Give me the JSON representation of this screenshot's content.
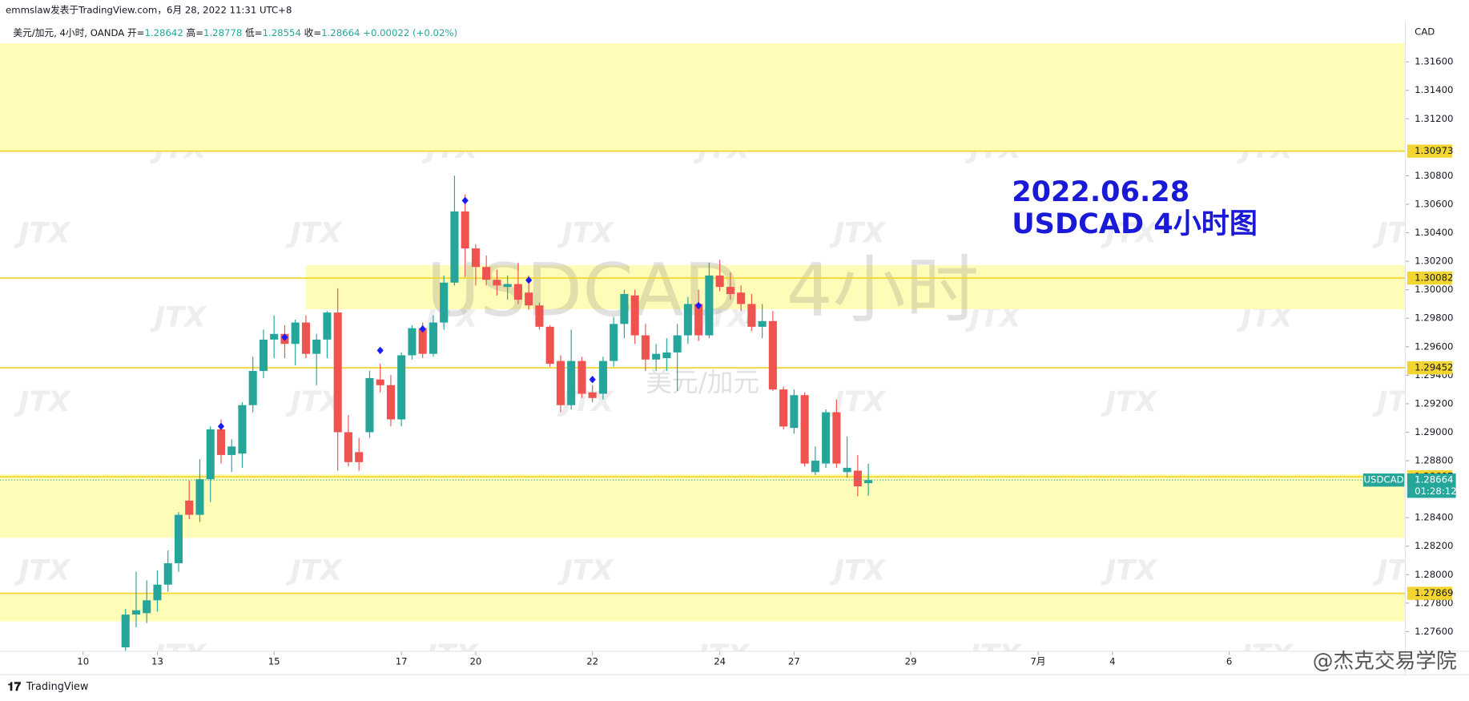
{
  "chart_data": {
    "type": "candlestick",
    "byline": "emmslaw发表于TradingView.com，6月 28, 2022 11:31 UTC+8",
    "symbol": "美元/加元, 4小时, OANDA",
    "ohlc_labels": [
      "开=",
      "高=",
      "低=",
      "收="
    ],
    "change": "+0.00022 (+0.02%)",
    "currency": "CAD",
    "watermark": "USDCAD, 4小时",
    "watermark_sub": "美元/加元",
    "tile_mark": "JTX",
    "annotation": [
      "2022.06.28",
      "USDCAD 4小时图"
    ],
    "brand": "TradingView",
    "credit": "@杰克交易学院",
    "last_name": "USDCAD",
    "countdown": "01:28:12",
    "up_color": "#26a69a",
    "down_color": "#ef5350",
    "level_color": "#f2d530",
    "zone_color": "#fffcb8",
    "ohlc": [
      [
        1.2749,
        1.2776,
        1.2745,
        1.2772
      ],
      [
        1.2772,
        1.2802,
        1.2763,
        1.2775
      ],
      [
        1.2773,
        1.2796,
        1.2766,
        1.2782
      ],
      [
        1.2782,
        1.2803,
        1.2774,
        1.2793
      ],
      [
        1.2793,
        1.2817,
        1.2788,
        1.2808
      ],
      [
        1.2808,
        1.2844,
        1.2802,
        1.2842
      ],
      [
        1.2852,
        1.2866,
        1.2839,
        1.2842
      ],
      [
        1.2842,
        1.2881,
        1.2837,
        1.2867
      ],
      [
        1.2867,
        1.2904,
        1.2851,
        1.2902
      ],
      [
        1.2902,
        1.2909,
        1.2878,
        1.2884
      ],
      [
        1.2884,
        1.2895,
        1.2872,
        1.289
      ],
      [
        1.2885,
        1.2921,
        1.2875,
        1.2919
      ],
      [
        1.2919,
        1.2953,
        1.2914,
        1.2943
      ],
      [
        1.2943,
        1.2972,
        1.2938,
        1.2965
      ],
      [
        1.2965,
        1.2982,
        1.2952,
        1.2969
      ],
      [
        1.2969,
        1.2975,
        1.2952,
        1.2962
      ],
      [
        1.2962,
        1.2979,
        1.2947,
        1.2977
      ],
      [
        1.2977,
        1.2982,
        1.2952,
        1.2955
      ],
      [
        1.2955,
        1.2969,
        1.2933,
        1.2965
      ],
      [
        1.2965,
        1.2985,
        1.2952,
        1.2984
      ],
      [
        1.2984,
        1.3001,
        1.2873,
        1.29
      ],
      [
        1.29,
        1.2912,
        1.2876,
        1.2879
      ],
      [
        1.2886,
        1.2896,
        1.2873,
        1.2879
      ],
      [
        1.29,
        1.2943,
        1.2896,
        1.2938
      ],
      [
        1.2937,
        1.2948,
        1.2928,
        1.2933
      ],
      [
        1.2933,
        1.294,
        1.2904,
        1.2909
      ],
      [
        1.2909,
        1.2956,
        1.2904,
        1.2954
      ],
      [
        1.2954,
        1.2975,
        1.2951,
        1.2973
      ],
      [
        1.2973,
        1.2977,
        1.2952,
        1.2955
      ],
      [
        1.2955,
        1.2982,
        1.2953,
        1.2977
      ],
      [
        1.2977,
        1.301,
        1.2972,
        1.3005
      ],
      [
        1.3005,
        1.308,
        1.3003,
        1.3055
      ],
      [
        1.3055,
        1.3067,
        1.3009,
        1.3029
      ],
      [
        1.3029,
        1.3032,
        1.3003,
        1.3016
      ],
      [
        1.3016,
        1.3024,
        1.3003,
        1.3007
      ],
      [
        1.3007,
        1.3014,
        1.2996,
        1.3003
      ],
      [
        1.3002,
        1.301,
        1.2993,
        1.3004
      ],
      [
        1.3004,
        1.3019,
        1.299,
        1.2993
      ],
      [
        1.2998,
        1.301,
        1.2986,
        1.2989
      ],
      [
        1.2989,
        1.2991,
        1.2972,
        1.2974
      ],
      [
        1.2974,
        1.2975,
        1.2946,
        1.2948
      ],
      [
        1.295,
        1.2954,
        1.2914,
        1.2919
      ],
      [
        1.2919,
        1.2972,
        1.2916,
        1.295
      ],
      [
        1.295,
        1.2953,
        1.2924,
        1.2927
      ],
      [
        1.2928,
        1.2933,
        1.2921,
        1.2924
      ],
      [
        1.2927,
        1.2953,
        1.2923,
        1.295
      ],
      [
        1.295,
        1.2981,
        1.2946,
        1.2976
      ],
      [
        1.2976,
        1.3,
        1.2966,
        1.2997
      ],
      [
        1.2996,
        1.3,
        1.2962,
        1.2968
      ],
      [
        1.2968,
        1.2976,
        1.2943,
        1.2951
      ],
      [
        1.2951,
        1.2962,
        1.2943,
        1.2955
      ],
      [
        1.2952,
        1.2966,
        1.2943,
        1.2956
      ],
      [
        1.2956,
        1.2976,
        1.2929,
        1.2968
      ],
      [
        1.2968,
        1.2995,
        1.2962,
        1.299
      ],
      [
        1.299,
        1.3,
        1.2964,
        1.2968
      ],
      [
        1.2968,
        1.3019,
        1.2966,
        1.301
      ],
      [
        1.301,
        1.3021,
        1.2999,
        1.3002
      ],
      [
        1.3002,
        1.3012,
        1.2993,
        1.2997
      ],
      [
        1.2998,
        1.3003,
        1.2985,
        1.299
      ],
      [
        1.299,
        1.2997,
        1.2971,
        1.2974
      ],
      [
        1.2974,
        1.299,
        1.2966,
        1.2978
      ],
      [
        1.2978,
        1.2985,
        1.2929,
        1.293
      ],
      [
        1.293,
        1.2932,
        1.2902,
        1.2904
      ],
      [
        1.2903,
        1.293,
        1.2899,
        1.2926
      ],
      [
        1.2926,
        1.2928,
        1.2876,
        1.2878
      ],
      [
        1.2872,
        1.289,
        1.287,
        1.288
      ],
      [
        1.2878,
        1.2916,
        1.2875,
        1.2914
      ],
      [
        1.2914,
        1.2923,
        1.2875,
        1.2878
      ],
      [
        1.2872,
        1.2897,
        1.2868,
        1.2875
      ],
      [
        1.2873,
        1.2884,
        1.2855,
        1.2862
      ],
      [
        1.28642,
        1.28778,
        1.28554,
        1.28664
      ]
    ],
    "signals": [
      null,
      null,
      null,
      null,
      null,
      null,
      null,
      null,
      null,
      1.29041,
      null,
      null,
      null,
      null,
      null,
      1.29666,
      null,
      null,
      null,
      null,
      null,
      null,
      null,
      null,
      1.29574,
      null,
      null,
      null,
      1.29725,
      null,
      null,
      null,
      1.30626,
      null,
      null,
      null,
      null,
      null,
      1.30067,
      null,
      null,
      null,
      null,
      null,
      1.2937,
      null,
      null,
      null,
      null,
      null,
      null,
      null,
      null,
      null,
      1.29889,
      null,
      null,
      null,
      null,
      null,
      null,
      null,
      null,
      null,
      null,
      null,
      null,
      null,
      null,
      null,
      null
    ],
    "signal_color": "#1a1aff",
    "levels": [
      1.30973,
      1.30082,
      1.29452,
      1.28687,
      1.27869
    ],
    "zones": [
      {
        "top": 1.3173,
        "bottom": 1.3097,
        "start": -12
      },
      {
        "top": 1.30172,
        "bottom": 1.29863,
        "start": 17
      },
      {
        "top": 1.28705,
        "bottom": 1.28258,
        "start": -12
      },
      {
        "top": 1.2787,
        "bottom": 1.27672,
        "start": -12
      }
    ],
    "xlim": [
      -11.83,
      120.6
    ],
    "ylim": [
      1.27462,
      1.31889
    ],
    "xticks": [
      {
        "value": -4,
        "label": "10"
      },
      {
        "value": 3,
        "label": "13"
      },
      {
        "value": 14,
        "label": "15"
      },
      {
        "value": 26,
        "label": "17"
      },
      {
        "value": 33,
        "label": "20"
      },
      {
        "value": 44,
        "label": "22"
      },
      {
        "value": 56,
        "label": "24"
      },
      {
        "value": 63,
        "label": "27"
      },
      {
        "value": 74,
        "label": "29"
      },
      {
        "value": 86,
        "label": "7月"
      },
      {
        "value": 93,
        "label": "4"
      },
      {
        "value": 104,
        "label": "6"
      }
    ],
    "yticks": [
      {
        "value": 1.276,
        "label": "1.27600"
      },
      {
        "value": 1.278,
        "label": "1.27800"
      },
      {
        "value": 1.28,
        "label": "1.28000"
      },
      {
        "value": 1.282,
        "label": "1.28200"
      },
      {
        "value": 1.284,
        "label": "1.28400"
      },
      {
        "value": 1.288,
        "label": "1.28800"
      },
      {
        "value": 1.29,
        "label": "1.29000"
      },
      {
        "value": 1.292,
        "label": "1.29200"
      },
      {
        "value": 1.294,
        "label": "1.29400"
      },
      {
        "value": 1.296,
        "label": "1.29600"
      },
      {
        "value": 1.298,
        "label": "1.29800"
      },
      {
        "value": 1.3,
        "label": "1.30000"
      },
      {
        "value": 1.302,
        "label": "1.30200"
      },
      {
        "value": 1.304,
        "label": "1.30400"
      },
      {
        "value": 1.306,
        "label": "1.30600"
      },
      {
        "value": 1.308,
        "label": "1.30800"
      },
      {
        "value": 1.312,
        "label": "1.31200"
      },
      {
        "value": 1.314,
        "label": "1.31400"
      },
      {
        "value": 1.316,
        "label": "1.31600"
      }
    ]
  }
}
